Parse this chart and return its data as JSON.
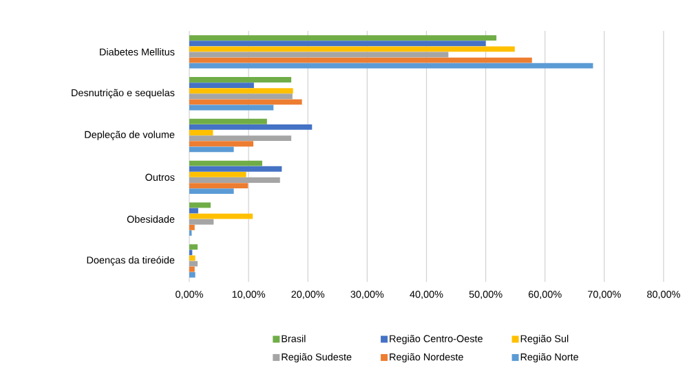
{
  "chart_data": {
    "type": "bar",
    "orientation": "horizontal",
    "categories": [
      "Diabetes Mellitus",
      "Desnutrição e sequelas",
      "Depleção de volume",
      "Outros",
      "Obesidade",
      "Doenças da tireóide"
    ],
    "series": [
      {
        "name": "Brasil",
        "color": "#70ad47",
        "values": [
          51.8,
          17.2,
          13.1,
          12.3,
          3.6,
          1.4
        ]
      },
      {
        "name": "Região Centro-Oeste",
        "color": "#4472c4",
        "values": [
          50.0,
          10.9,
          20.7,
          15.6,
          1.5,
          0.5
        ]
      },
      {
        "name": "Região Sul",
        "color": "#ffc000",
        "values": [
          54.9,
          17.5,
          4.0,
          9.6,
          10.7,
          1.0
        ]
      },
      {
        "name": "Região Sudeste",
        "color": "#a5a5a5",
        "values": [
          43.7,
          17.4,
          17.2,
          15.3,
          4.1,
          1.4
        ]
      },
      {
        "name": "Região Nordeste",
        "color": "#ed7d31",
        "values": [
          57.8,
          19.0,
          10.8,
          9.9,
          0.9,
          0.9
        ]
      },
      {
        "name": "Região Norte",
        "color": "#5b9bd5",
        "values": [
          68.1,
          14.2,
          7.5,
          7.5,
          0.4,
          1.0
        ]
      }
    ],
    "xlim": [
      0,
      80
    ],
    "xticks": [
      {
        "value": 0,
        "label": "0,00%"
      },
      {
        "value": 10,
        "label": "10,00%"
      },
      {
        "value": 20,
        "label": "20,00%"
      },
      {
        "value": 30,
        "label": "30,00%"
      },
      {
        "value": 40,
        "label": "40,00%"
      },
      {
        "value": 50,
        "label": "50,00%"
      },
      {
        "value": 60,
        "label": "60,00%"
      },
      {
        "value": 70,
        "label": "70,00%"
      },
      {
        "value": 80,
        "label": "80,00%"
      }
    ],
    "grid": "x",
    "legend": "bottom"
  }
}
